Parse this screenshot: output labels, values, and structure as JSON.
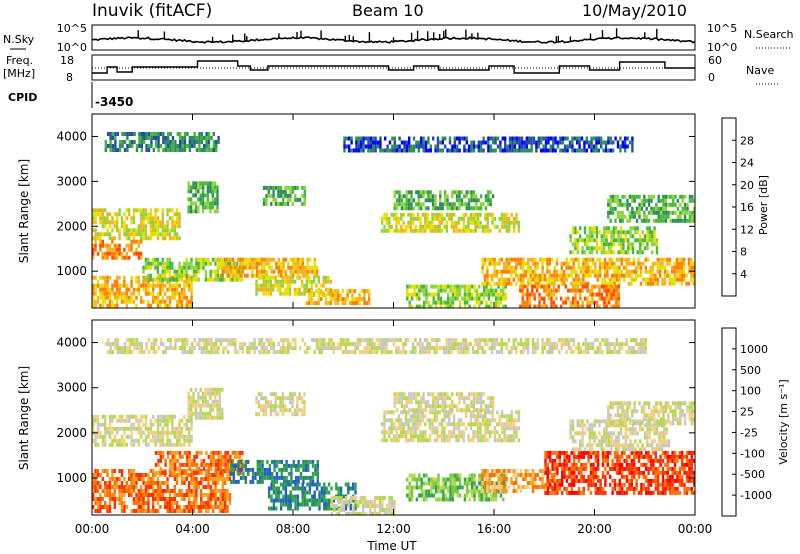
{
  "header": {
    "station": "Inuvik (fitACF)",
    "beam": "Beam 10",
    "date": "10/May/2010"
  },
  "top_panels": {
    "nsky_label": "N.Sky",
    "nsearch_label": "N.Search",
    "count_ticks": [
      "10^5",
      "10^0"
    ],
    "freq_label": "Freq.",
    "freq_unit": "[MHz]",
    "freq_ticks": [
      "18",
      "8"
    ],
    "nave_label": "Nave",
    "nave_ticks": [
      "60",
      "0"
    ],
    "cpid_label": "CPID",
    "cpid_value": "-3450"
  },
  "colorbars": {
    "power": {
      "label": "Power [dB]",
      "ticks": [
        "28",
        "24",
        "20",
        "16",
        "12",
        "8",
        "4"
      ],
      "colors": [
        "#0000ff",
        "#244fa6",
        "#2d8c5a",
        "#45b83c",
        "#8fd33a",
        "#e6e000",
        "#f6b21a",
        "#ff7f00",
        "#ff4a00",
        "#ff0000"
      ]
    },
    "velocity": {
      "label": "Velocity [m s⁻¹]",
      "ticks": [
        "1000",
        "500",
        "100",
        "25",
        "-25",
        "-100",
        "-500",
        "-1000"
      ],
      "colors": [
        "#2030b0",
        "#2060c8",
        "#2a8c5a",
        "#2ea84c",
        "#7cc83c",
        "#b8d850",
        "#c8c8c0",
        "#f0d080",
        "#f5a020",
        "#ff7000",
        "#ff3000",
        "#ff0000"
      ]
    }
  },
  "chart_data": [
    {
      "type": "heatmap",
      "panel": "power",
      "ylabel": "Slant Range [km]",
      "x_ticks": [
        "00:00",
        "04:00",
        "08:00",
        "12:00",
        "16:00",
        "20:00",
        "00:00"
      ],
      "y_ticks": [
        1000,
        2000,
        3000,
        4000
      ],
      "ylim": [
        180,
        4500
      ],
      "xlim_hours": [
        0,
        24
      ],
      "regions": [
        {
          "t0": 0.0,
          "t1": 3.5,
          "r0": 1700,
          "r1": 2400,
          "level": 5
        },
        {
          "t0": 0.0,
          "t1": 2.0,
          "r0": 1300,
          "r1": 1700,
          "level": 7
        },
        {
          "t0": 0.0,
          "t1": 4.0,
          "r0": 200,
          "r1": 900,
          "level": 6
        },
        {
          "t0": 2.0,
          "t1": 6.0,
          "r0": 800,
          "r1": 1300,
          "level": 4
        },
        {
          "t0": 3.8,
          "t1": 5.0,
          "r0": 2300,
          "r1": 3000,
          "level": 3
        },
        {
          "t0": 5.0,
          "t1": 9.0,
          "r0": 900,
          "r1": 1300,
          "level": 6
        },
        {
          "t0": 6.5,
          "t1": 9.5,
          "r0": 500,
          "r1": 900,
          "level": 5
        },
        {
          "t0": 8.5,
          "t1": 11.0,
          "r0": 250,
          "r1": 600,
          "level": 6
        },
        {
          "t0": 6.8,
          "t1": 8.5,
          "r0": 2500,
          "r1": 2900,
          "level": 3
        },
        {
          "t0": 11.5,
          "t1": 17.0,
          "r0": 1900,
          "r1": 2300,
          "level": 5
        },
        {
          "t0": 12.0,
          "t1": 16.0,
          "r0": 2400,
          "r1": 2800,
          "level": 3
        },
        {
          "t0": 12.5,
          "t1": 16.5,
          "r0": 200,
          "r1": 700,
          "level": 4
        },
        {
          "t0": 15.5,
          "t1": 24.0,
          "r0": 700,
          "r1": 1300,
          "level": 6
        },
        {
          "t0": 17.0,
          "t1": 21.0,
          "r0": 250,
          "r1": 700,
          "level": 7
        },
        {
          "t0": 19.0,
          "t1": 22.5,
          "r0": 1400,
          "r1": 2000,
          "level": 4
        },
        {
          "t0": 20.5,
          "t1": 24.0,
          "r0": 2100,
          "r1": 2700,
          "level": 3
        },
        {
          "t0": 0.5,
          "t1": 5.0,
          "r0": 3700,
          "r1": 4100,
          "level": 2
        },
        {
          "t0": 10.0,
          "t1": 21.5,
          "r0": 3700,
          "r1": 4000,
          "level": 1
        }
      ]
    },
    {
      "type": "heatmap",
      "panel": "velocity",
      "xlabel": "Time UT",
      "ylabel": "Slant Range [km]",
      "x_ticks": [
        "00:00",
        "04:00",
        "08:00",
        "12:00",
        "16:00",
        "20:00",
        "00:00"
      ],
      "y_ticks": [
        1000,
        2000,
        3000,
        4000
      ],
      "ylim": [
        180,
        4500
      ],
      "xlim_hours": [
        0,
        24
      ],
      "regions": [
        {
          "t0": 0.0,
          "t1": 4.0,
          "r0": 1700,
          "r1": 2400,
          "level": 6
        },
        {
          "t0": 0.0,
          "t1": 5.5,
          "r0": 300,
          "r1": 1200,
          "level": 9
        },
        {
          "t0": 2.5,
          "t1": 6.0,
          "r0": 1100,
          "r1": 1600,
          "level": 9
        },
        {
          "t0": 3.8,
          "t1": 5.2,
          "r0": 2300,
          "r1": 3000,
          "level": 6
        },
        {
          "t0": 5.5,
          "t1": 9.0,
          "r0": 900,
          "r1": 1400,
          "level": 2
        },
        {
          "t0": 7.0,
          "t1": 10.5,
          "r0": 300,
          "r1": 900,
          "level": 2
        },
        {
          "t0": 6.5,
          "t1": 8.5,
          "r0": 2400,
          "r1": 2900,
          "level": 6
        },
        {
          "t0": 9.5,
          "t1": 12.0,
          "r0": 200,
          "r1": 600,
          "level": 6
        },
        {
          "t0": 11.5,
          "t1": 17.0,
          "r0": 1800,
          "r1": 2500,
          "level": 6
        },
        {
          "t0": 12.0,
          "t1": 16.0,
          "r0": 2500,
          "r1": 2900,
          "level": 6
        },
        {
          "t0": 12.5,
          "t1": 16.5,
          "r0": 500,
          "r1": 1100,
          "level": 4
        },
        {
          "t0": 15.5,
          "t1": 18.5,
          "r0": 700,
          "r1": 1200,
          "level": 8
        },
        {
          "t0": 18.0,
          "t1": 24.0,
          "r0": 700,
          "r1": 1600,
          "level": 10
        },
        {
          "t0": 19.0,
          "t1": 23.0,
          "r0": 1600,
          "r1": 2300,
          "level": 6
        },
        {
          "t0": 20.5,
          "t1": 24.0,
          "r0": 2200,
          "r1": 2700,
          "level": 6
        },
        {
          "t0": 0.5,
          "t1": 22.0,
          "r0": 3800,
          "r1": 4100,
          "level": 6
        }
      ]
    }
  ]
}
